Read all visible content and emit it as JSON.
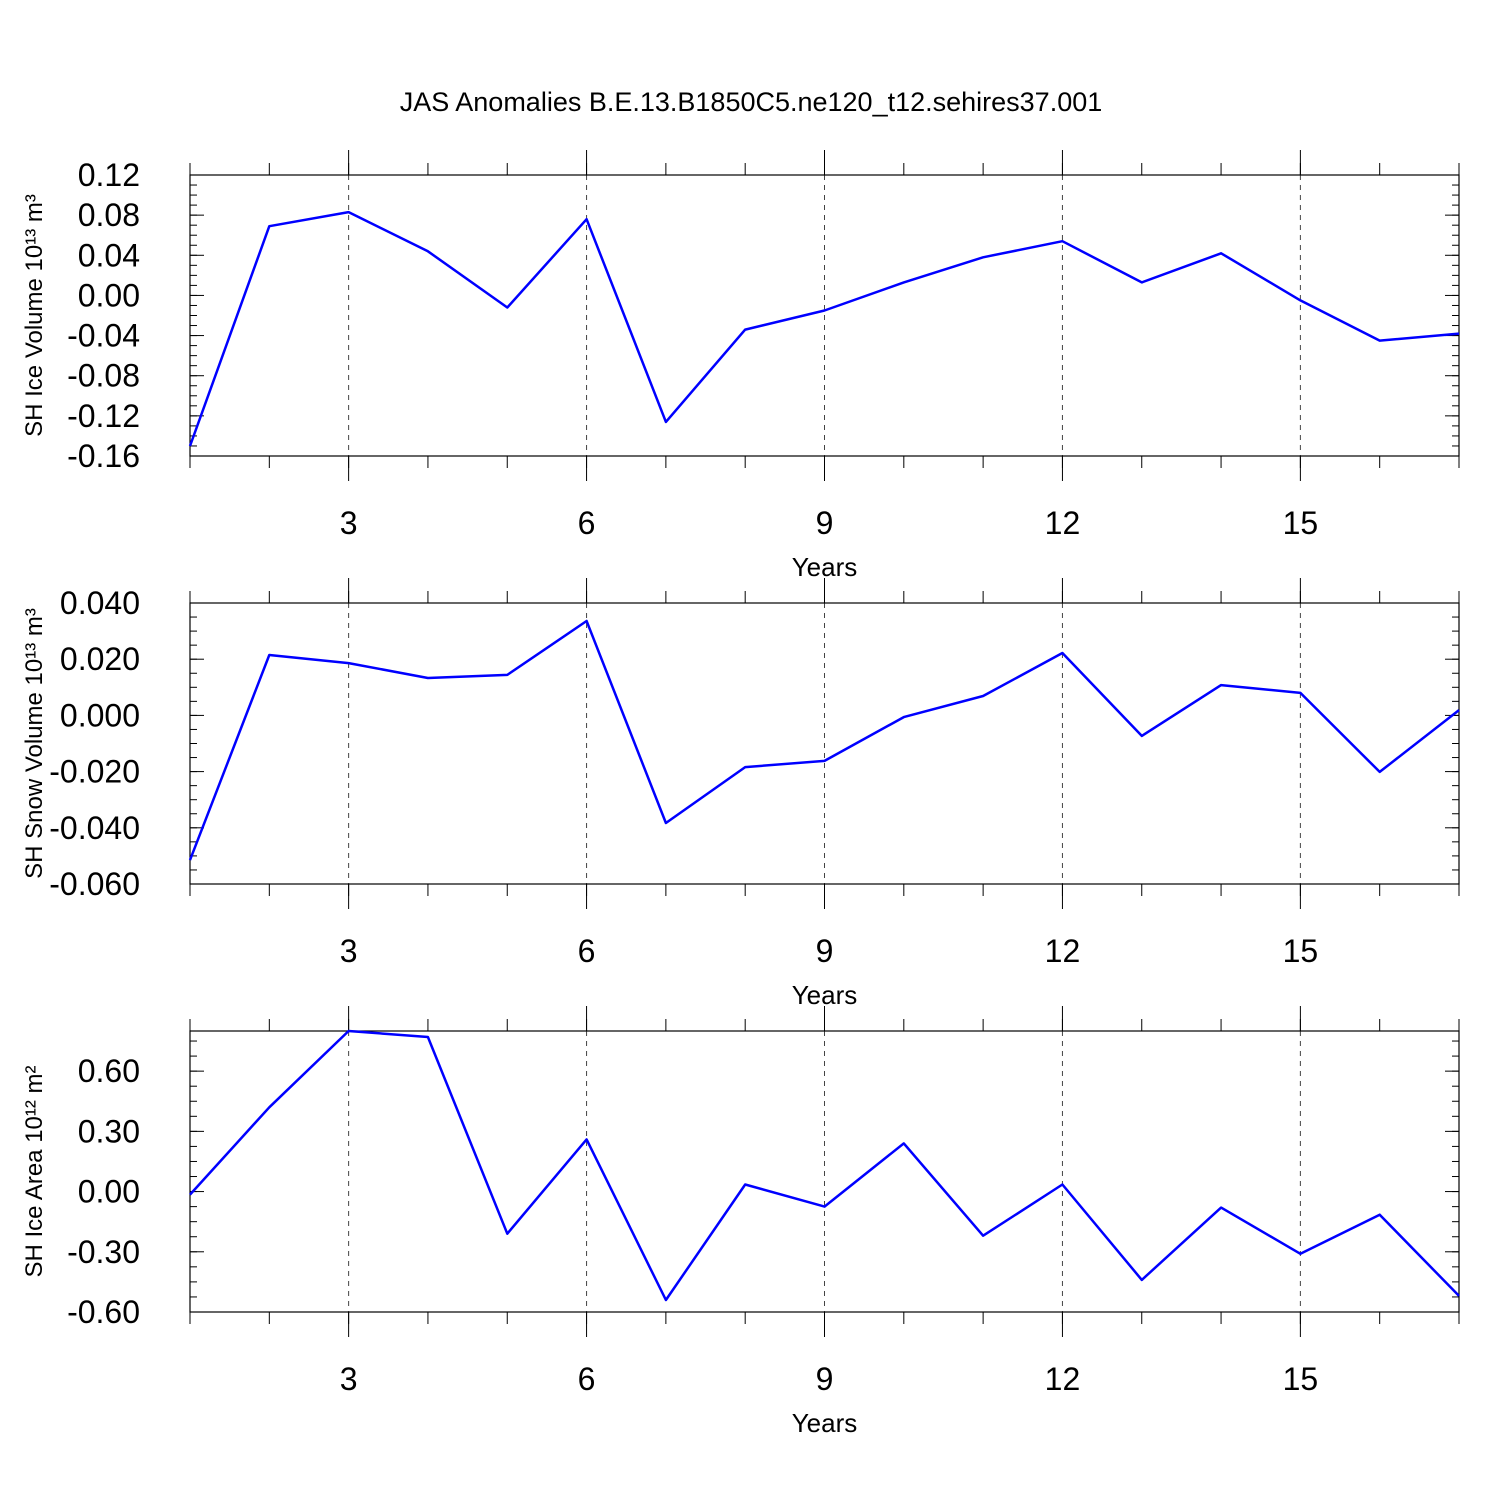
{
  "title": "JAS Anomalies B.E.13.B1850C5.ne120_t12.sehires37.001",
  "chart_data": [
    {
      "type": "line",
      "xlabel": "Years",
      "ylabel": "SH Ice Volume 10¹³ m³",
      "x": [
        1,
        2,
        3,
        4,
        5,
        6,
        7,
        8,
        9,
        10,
        11,
        12,
        13,
        14,
        15,
        16,
        17
      ],
      "values": [
        -0.15,
        0.069,
        0.083,
        0.044,
        -0.012,
        0.076,
        -0.126,
        -0.034,
        -0.015,
        0.013,
        0.038,
        0.054,
        0.013,
        0.042,
        -0.005,
        -0.045,
        -0.038
      ],
      "color": "#0000ff",
      "xlim": [
        1,
        17
      ],
      "xticks": [
        3,
        6,
        9,
        12,
        15
      ],
      "ylim": [
        -0.16,
        0.12
      ],
      "yticks": [
        0.12,
        0.08,
        0.04,
        {
          "value": 0,
          "label": "0.00"
        },
        -0.04,
        -0.08,
        -0.12,
        -0.16
      ],
      "grid": "x"
    },
    {
      "type": "line",
      "xlabel": "Years",
      "ylabel": "SH Snow Volume 10¹³ m³",
      "x": [
        1,
        2,
        3,
        4,
        5,
        6,
        7,
        8,
        9,
        10,
        11,
        12,
        13,
        14,
        15,
        16,
        17
      ],
      "values": [
        -0.0515,
        0.0215,
        0.0186,
        0.0133,
        0.0144,
        0.0336,
        -0.0383,
        -0.0184,
        -0.0162,
        -0.0006,
        0.0069,
        0.0222,
        -0.0073,
        0.0108,
        0.008,
        -0.0201,
        0.0019
      ],
      "color": "#0000ff",
      "xlim": [
        1,
        17
      ],
      "xticks": [
        3,
        6,
        9,
        12,
        15
      ],
      "ylim": [
        -0.06,
        0.04
      ],
      "yticks": [
        {
          "value": 0.04,
          "label": "0.040"
        },
        {
          "value": 0.02,
          "label": "0.020"
        },
        {
          "value": 0,
          "label": "0.000"
        },
        {
          "value": -0.02,
          "label": "-0.020"
        },
        {
          "value": -0.04,
          "label": "-0.040"
        },
        {
          "value": -0.06,
          "label": "-0.060"
        }
      ],
      "grid": "x"
    },
    {
      "type": "line",
      "xlabel": "Years",
      "ylabel": "SH Ice Area 10¹² m²",
      "x": [
        1,
        2,
        3,
        4,
        5,
        6,
        7,
        8,
        9,
        10,
        11,
        12,
        13,
        14,
        15,
        16,
        17
      ],
      "values": [
        -0.015,
        0.42,
        0.8,
        0.77,
        -0.21,
        0.26,
        -0.54,
        0.035,
        -0.075,
        0.24,
        -0.22,
        0.035,
        -0.44,
        -0.08,
        -0.31,
        -0.115,
        -0.52
      ],
      "color": "#0000ff",
      "xlim": [
        1,
        17
      ],
      "xticks": [
        3,
        6,
        9,
        12,
        15
      ],
      "ylim": [
        -0.6,
        0.8
      ],
      "yticks": [
        {
          "value": 0.6,
          "label": "0.60"
        },
        {
          "value": 0.3,
          "label": "0.30"
        },
        {
          "value": 0,
          "label": "0.00"
        },
        {
          "value": -0.3,
          "label": "-0.30"
        },
        {
          "value": -0.6,
          "label": "-0.60"
        }
      ],
      "grid": "x"
    }
  ]
}
